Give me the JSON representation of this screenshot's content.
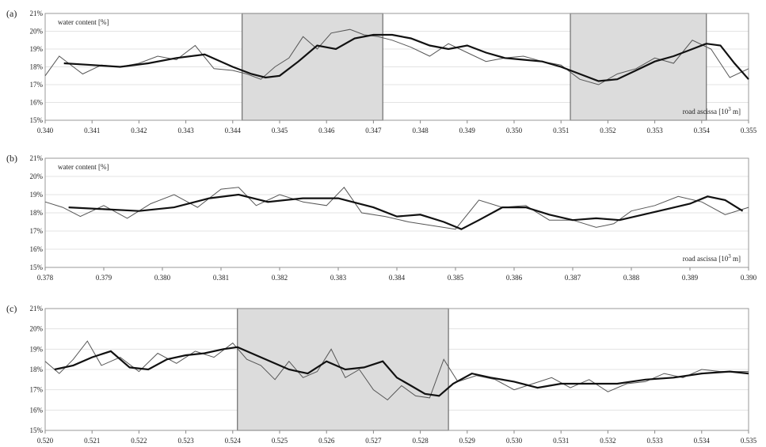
{
  "chart_data": [
    {
      "type": "line",
      "panel_label": "(a)",
      "ylabel": "water content [%]",
      "xlabel_annotation": "road ascissa [10",
      "xlabel_sup": "3",
      "xlabel_tail": " m]",
      "xlim": [
        0.34,
        0.355
      ],
      "ylim": [
        15,
        21
      ],
      "x_ticks": [
        "0.340",
        "0.341",
        "0.342",
        "0.343",
        "0.344",
        "0.345",
        "0.346",
        "0.347",
        "0.348",
        "0.349",
        "0.350",
        "0.351",
        "0.352",
        "0.353",
        "0.354",
        "0.355"
      ],
      "y_ticks": [
        "15%",
        "16%",
        "17%",
        "18%",
        "19%",
        "20%",
        "21%"
      ],
      "shaded_ranges": [
        [
          0.3442,
          0.3472
        ],
        [
          0.3512,
          0.3541
        ]
      ],
      "series": [
        {
          "x": [
            0.34,
            0.3403,
            0.3405,
            0.3408,
            0.3412,
            0.3416,
            0.342,
            0.3424,
            0.3428,
            0.3432,
            0.3436,
            0.344,
            0.3443,
            0.3446,
            0.3449,
            0.3452,
            0.3455,
            0.3458,
            0.3461,
            0.3465,
            0.3468,
            0.3471,
            0.3474,
            0.3478,
            0.3482,
            0.3486,
            0.349,
            0.3494,
            0.3498,
            0.3502,
            0.3506,
            0.351,
            0.3514,
            0.3518,
            0.3522,
            0.3526,
            0.353,
            0.3534,
            0.3538,
            0.3542,
            0.3546,
            0.355
          ],
          "values": [
            17.5,
            18.6,
            18.2,
            17.6,
            18.1,
            18.0,
            18.2,
            18.6,
            18.4,
            19.2,
            17.9,
            17.8,
            17.6,
            17.3,
            18.0,
            18.5,
            19.7,
            19.0,
            19.9,
            20.1,
            19.8,
            19.7,
            19.5,
            19.1,
            18.6,
            19.3,
            18.8,
            18.3,
            18.5,
            18.6,
            18.3,
            18.1,
            17.3,
            17.0,
            17.6,
            17.9,
            18.5,
            18.2,
            19.5,
            19.0,
            17.4,
            17.9
          ]
        },
        {
          "x": [
            0.3404,
            0.341,
            0.3416,
            0.3422,
            0.3428,
            0.3434,
            0.344,
            0.3444,
            0.3447,
            0.345,
            0.3454,
            0.3458,
            0.3462,
            0.3466,
            0.347,
            0.3474,
            0.3478,
            0.3482,
            0.3486,
            0.349,
            0.3494,
            0.3498,
            0.3502,
            0.3506,
            0.351,
            0.3514,
            0.3518,
            0.3522,
            0.3526,
            0.353,
            0.3534,
            0.3538,
            0.3541,
            0.3544,
            0.3547,
            0.355
          ],
          "values": [
            18.2,
            18.1,
            18.0,
            18.2,
            18.5,
            18.7,
            18.0,
            17.6,
            17.4,
            17.5,
            18.3,
            19.2,
            19.0,
            19.6,
            19.8,
            19.8,
            19.6,
            19.2,
            19.0,
            19.2,
            18.8,
            18.5,
            18.4,
            18.3,
            18.0,
            17.6,
            17.2,
            17.3,
            17.8,
            18.3,
            18.6,
            19.0,
            19.3,
            19.2,
            18.2,
            17.3
          ]
        }
      ]
    },
    {
      "type": "line",
      "panel_label": "(b)",
      "ylabel": "water content [%]",
      "xlabel_annotation": "road ascissa [10",
      "xlabel_sup": "3",
      "xlabel_tail": " m]",
      "xlim": [
        0.378,
        0.39
      ],
      "ylim": [
        15,
        21
      ],
      "x_ticks": [
        "0.378",
        "0.379",
        "0.380",
        "0.381",
        "0.382",
        "0.383",
        "0.384",
        "0.385",
        "0.386",
        "0.387",
        "0.388",
        "0.389",
        "0.390"
      ],
      "y_ticks": [
        "15%",
        "16%",
        "17%",
        "18%",
        "19%",
        "20%",
        "21%"
      ],
      "shaded_ranges": [],
      "series": [
        {
          "x": [
            0.378,
            0.3783,
            0.3786,
            0.379,
            0.3794,
            0.3798,
            0.3802,
            0.3806,
            0.381,
            0.3813,
            0.3816,
            0.382,
            0.3824,
            0.3828,
            0.3831,
            0.3834,
            0.3838,
            0.3842,
            0.3846,
            0.385,
            0.3854,
            0.3858,
            0.3862,
            0.3866,
            0.387,
            0.3874,
            0.3877,
            0.388,
            0.3884,
            0.3888,
            0.3892,
            0.3896,
            0.39
          ],
          "values": [
            18.6,
            18.3,
            17.8,
            18.4,
            17.7,
            18.5,
            19.0,
            18.3,
            19.3,
            19.4,
            18.4,
            19.0,
            18.6,
            18.4,
            19.4,
            18.0,
            17.8,
            17.5,
            17.3,
            17.1,
            18.7,
            18.3,
            18.4,
            17.6,
            17.6,
            17.2,
            17.4,
            18.1,
            18.4,
            18.9,
            18.6,
            17.9,
            18.3
          ]
        },
        {
          "x": [
            0.3784,
            0.379,
            0.3796,
            0.3802,
            0.3808,
            0.3813,
            0.3818,
            0.3824,
            0.383,
            0.3836,
            0.384,
            0.3844,
            0.3848,
            0.3851,
            0.3854,
            0.3858,
            0.3862,
            0.3866,
            0.387,
            0.3874,
            0.3878,
            0.3882,
            0.3886,
            0.389,
            0.3893,
            0.3896,
            0.3899
          ],
          "values": [
            18.3,
            18.2,
            18.1,
            18.3,
            18.8,
            19.0,
            18.6,
            18.8,
            18.8,
            18.3,
            17.8,
            17.9,
            17.5,
            17.1,
            17.6,
            18.3,
            18.3,
            17.9,
            17.6,
            17.7,
            17.6,
            17.9,
            18.2,
            18.5,
            18.9,
            18.7,
            18.1
          ]
        }
      ]
    },
    {
      "type": "line",
      "panel_label": "(c)",
      "ylabel": "",
      "xlabel_annotation": "",
      "xlabel_sup": "",
      "xlabel_tail": "",
      "xlim": [
        0.52,
        0.535
      ],
      "ylim": [
        15,
        21
      ],
      "x_ticks": [
        "0.520",
        "0.521",
        "0.522",
        "0.523",
        "0.524",
        "0.525",
        "0.526",
        "0.527",
        "0.528",
        "0.529",
        "0.530",
        "0.531",
        "0.532",
        "0.533",
        "0.534",
        "0.535"
      ],
      "y_ticks": [
        "15%",
        "16%",
        "17%",
        "18%",
        "19%",
        "20%",
        "21%"
      ],
      "shaded_ranges": [
        [
          0.5241,
          0.5286
        ]
      ],
      "series": [
        {
          "x": [
            0.52,
            0.5203,
            0.5206,
            0.5209,
            0.5212,
            0.5216,
            0.522,
            0.5224,
            0.5228,
            0.5232,
            0.5236,
            0.524,
            0.5243,
            0.5246,
            0.5249,
            0.5252,
            0.5255,
            0.5258,
            0.5261,
            0.5264,
            0.5267,
            0.527,
            0.5273,
            0.5276,
            0.5279,
            0.5282,
            0.5285,
            0.5288,
            0.5292,
            0.5296,
            0.53,
            0.5304,
            0.5308,
            0.5312,
            0.5316,
            0.532,
            0.5324,
            0.5328,
            0.5332,
            0.5336,
            0.534,
            0.5344,
            0.535
          ],
          "values": [
            18.4,
            17.8,
            18.5,
            19.4,
            18.2,
            18.6,
            17.9,
            18.8,
            18.3,
            18.9,
            18.6,
            19.3,
            18.5,
            18.2,
            17.5,
            18.4,
            17.6,
            17.9,
            19.0,
            17.6,
            18.0,
            17.0,
            16.5,
            17.2,
            16.7,
            16.6,
            18.5,
            17.4,
            17.7,
            17.5,
            17.0,
            17.3,
            17.6,
            17.1,
            17.5,
            16.9,
            17.3,
            17.4,
            17.8,
            17.6,
            18.0,
            17.9,
            17.9
          ]
        },
        {
          "x": [
            0.5202,
            0.5206,
            0.521,
            0.5214,
            0.5218,
            0.5222,
            0.5226,
            0.523,
            0.5234,
            0.5238,
            0.5241,
            0.5244,
            0.5248,
            0.5252,
            0.5256,
            0.526,
            0.5264,
            0.5268,
            0.5272,
            0.5275,
            0.5278,
            0.5281,
            0.5284,
            0.5287,
            0.5291,
            0.5295,
            0.53,
            0.5305,
            0.531,
            0.5316,
            0.5322,
            0.5328,
            0.5334,
            0.534,
            0.5346,
            0.535
          ],
          "values": [
            18.0,
            18.2,
            18.6,
            18.9,
            18.1,
            18.0,
            18.5,
            18.7,
            18.8,
            19.0,
            19.1,
            18.8,
            18.4,
            18.0,
            17.8,
            18.4,
            18.0,
            18.1,
            18.4,
            17.6,
            17.2,
            16.8,
            16.7,
            17.3,
            17.8,
            17.6,
            17.4,
            17.1,
            17.3,
            17.3,
            17.3,
            17.5,
            17.6,
            17.8,
            17.9,
            17.8
          ]
        }
      ]
    }
  ]
}
